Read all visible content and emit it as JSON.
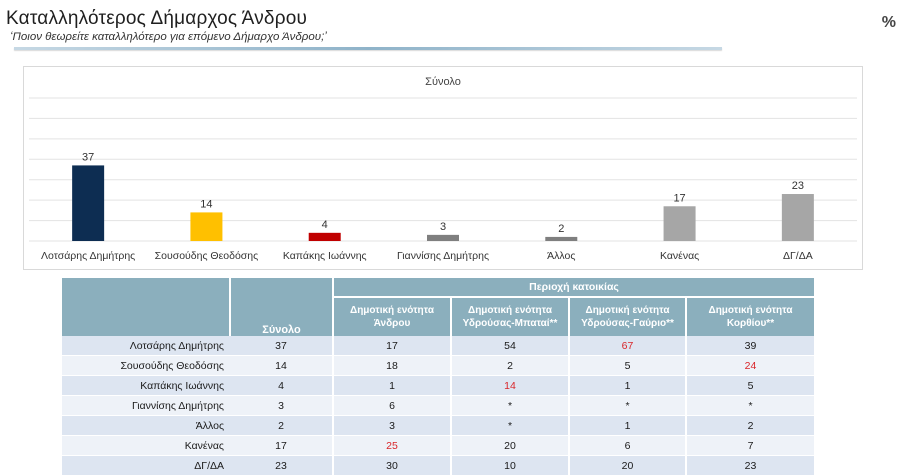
{
  "header": {
    "title": "Καταλληλότερος Δήμαρχος Άνδρου",
    "subtitle": "‘Ποιον θεωρείτε καταλληλότερο για επόμενο Δήμαρχο Άνδρου;’",
    "unit": "%"
  },
  "chart_data": {
    "type": "bar",
    "title": "Σύνολο",
    "categories": [
      "Λοτσάρης Δημήτρης",
      "Σουσούδης Θεοδόσης",
      "Καπάκης Ιωάννης",
      "Γιαννίσης Δημήτρης",
      "Άλλος",
      "Κανένας",
      "ΔΓ/ΔΑ"
    ],
    "values": [
      37,
      14,
      4,
      3,
      2,
      17,
      23
    ],
    "colors": [
      "#0d2d52",
      "#ffc000",
      "#c00000",
      "#7f7f7f",
      "#7f7f7f",
      "#a6a6a6",
      "#a6a6a6"
    ],
    "grid": true,
    "ylim": [
      0,
      70
    ]
  },
  "table": {
    "total_header": "Σύνολο",
    "group_header": "Περιοχή κατοικίας",
    "columns": [
      "Δημοτική ενότητα Άνδρου",
      "Δημοτική ενότητα Υδρούσας-Μπαταί**",
      "Δημοτική ενότητα Υδρούσας-Γαύριο**",
      "Δημοτική ενότητα Κορθίου**"
    ],
    "rows": [
      {
        "label": "Λοτσάρης Δημήτρης",
        "values": [
          "37",
          "17",
          "54",
          "67",
          "39"
        ],
        "highlight": [
          false,
          false,
          false,
          true,
          false
        ]
      },
      {
        "label": "Σουσούδης Θεοδόσης",
        "values": [
          "14",
          "18",
          "2",
          "5",
          "24"
        ],
        "highlight": [
          false,
          false,
          false,
          false,
          true
        ]
      },
      {
        "label": "Καπάκης Ιωάννης",
        "values": [
          "4",
          "1",
          "14",
          "1",
          "5"
        ],
        "highlight": [
          false,
          false,
          true,
          false,
          false
        ]
      },
      {
        "label": "Γιαννίσης Δημήτρης",
        "values": [
          "3",
          "6",
          "*",
          "*",
          "*"
        ],
        "highlight": [
          false,
          false,
          false,
          false,
          false
        ]
      },
      {
        "label": "Άλλος",
        "values": [
          "2",
          "3",
          "*",
          "1",
          "2"
        ],
        "highlight": [
          false,
          false,
          false,
          false,
          false
        ]
      },
      {
        "label": "Κανένας",
        "values": [
          "17",
          "25",
          "20",
          "6",
          "7"
        ],
        "highlight": [
          false,
          true,
          false,
          false,
          false
        ]
      },
      {
        "label": "ΔΓ/ΔΑ",
        "values": [
          "23",
          "30",
          "10",
          "20",
          "23"
        ],
        "highlight": [
          false,
          false,
          false,
          false,
          false
        ]
      }
    ],
    "highlight_color": "#d9262a"
  }
}
